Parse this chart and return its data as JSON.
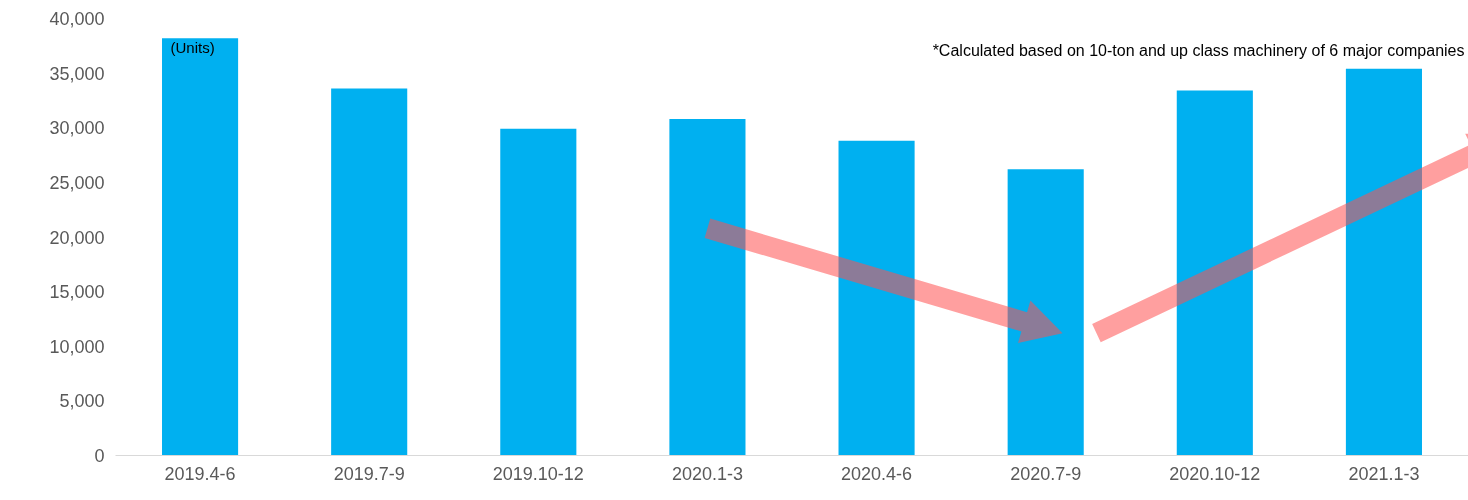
{
  "chart_data": {
    "type": "bar",
    "categories": [
      "2019.4-6",
      "2019.7-9",
      "2019.10-12",
      "2020.1-3",
      "2020.4-6",
      "2020.7-9",
      "2020.10-12",
      "2021.1-3"
    ],
    "values": [
      38200,
      33600,
      29900,
      30800,
      28800,
      26200,
      33400,
      35400
    ],
    "color": "#00b0f0",
    "ylabel": "(Units)",
    "annotations": [
      "*Calculated based on 10-ton and up class machinery of 6 major companies"
    ],
    "ylim": [
      0,
      40000
    ],
    "yticks": [
      {
        "value": 0,
        "label": "0"
      },
      {
        "value": 5000,
        "label": "5,000"
      },
      {
        "value": 10000,
        "label": "10,000"
      },
      {
        "value": 15000,
        "label": "15,000"
      },
      {
        "value": 20000,
        "label": "20,000"
      },
      {
        "value": 25000,
        "label": "25,000"
      },
      {
        "value": 30000,
        "label": "30,000"
      },
      {
        "value": 35000,
        "label": "35,000"
      },
      {
        "value": 40000,
        "label": "40,000"
      }
    ],
    "grid": false
  }
}
